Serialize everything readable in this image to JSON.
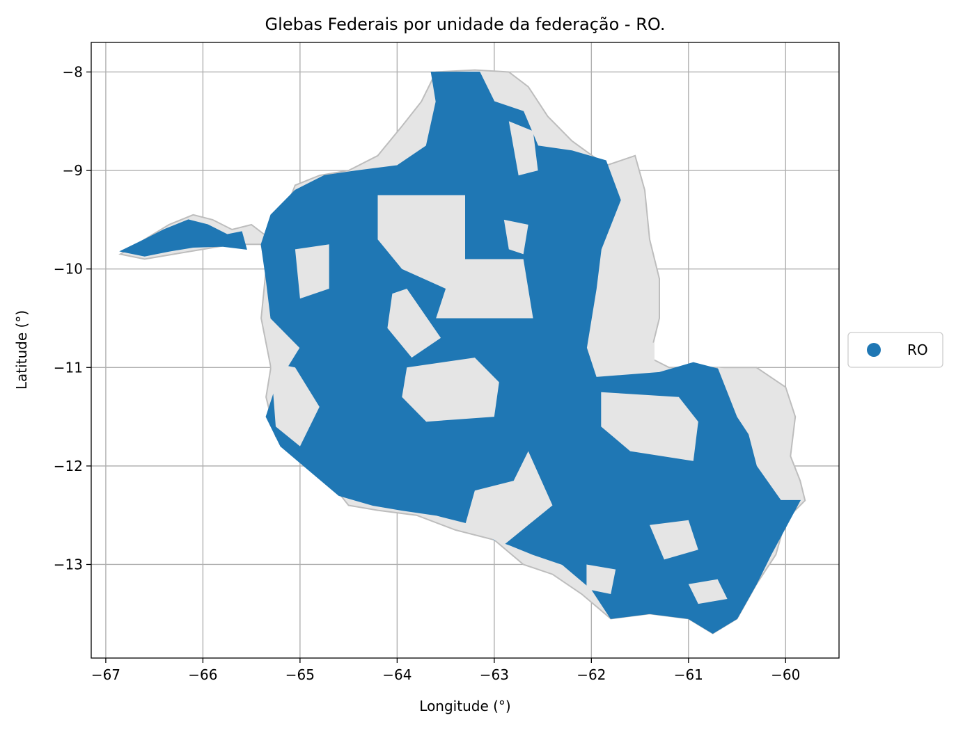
{
  "chart_data": {
    "type": "map",
    "title": "Glebas Federais por unidade da federação - RO.",
    "xlabel": "Longitude (°)",
    "ylabel": "Latitude (°)",
    "xlim": [
      -67.15,
      -59.45
    ],
    "ylim": [
      -13.95,
      -7.7
    ],
    "x_ticks": [
      -67,
      -66,
      -65,
      -64,
      -63,
      -62,
      -61,
      -60
    ],
    "x_tick_labels": [
      "−67",
      "−66",
      "−65",
      "−64",
      "−63",
      "−62",
      "−61",
      "−60"
    ],
    "y_ticks": [
      -8,
      -9,
      -10,
      -11,
      -12,
      -13
    ],
    "y_tick_labels": [
      "−8",
      "−9",
      "−10",
      "−11",
      "−12",
      "−13"
    ],
    "grid": true,
    "legend": {
      "placement": "center-right",
      "entries": [
        {
          "label": "RO",
          "color": "#1f77b4"
        }
      ]
    },
    "colors": {
      "glebas": "#1f77b4",
      "state_background": "#e5e5e5",
      "state_outline": "#bdbdbd",
      "grid": "#b0b0b0"
    },
    "state_outline": [
      [
        -66.85,
        -9.85
      ],
      [
        -66.6,
        -9.7
      ],
      [
        -66.35,
        -9.55
      ],
      [
        -66.1,
        -9.45
      ],
      [
        -65.9,
        -9.5
      ],
      [
        -65.7,
        -9.6
      ],
      [
        -65.5,
        -9.55
      ],
      [
        -65.3,
        -9.7
      ],
      [
        -65.15,
        -9.4
      ],
      [
        -65.05,
        -9.15
      ],
      [
        -64.8,
        -9.05
      ],
      [
        -64.5,
        -9.0
      ],
      [
        -64.2,
        -8.85
      ],
      [
        -63.95,
        -8.55
      ],
      [
        -63.75,
        -8.3
      ],
      [
        -63.6,
        -8.0
      ],
      [
        -63.2,
        -7.98
      ],
      [
        -62.85,
        -8.0
      ],
      [
        -62.65,
        -8.15
      ],
      [
        -62.45,
        -8.45
      ],
      [
        -62.2,
        -8.7
      ],
      [
        -61.85,
        -8.95
      ],
      [
        -61.55,
        -8.85
      ],
      [
        -61.45,
        -9.2
      ],
      [
        -61.4,
        -9.7
      ],
      [
        -61.3,
        -10.1
      ],
      [
        -61.3,
        -10.5
      ],
      [
        -61.4,
        -10.9
      ],
      [
        -61.2,
        -11.0
      ],
      [
        -60.7,
        -11.0
      ],
      [
        -60.3,
        -11.0
      ],
      [
        -60.0,
        -11.2
      ],
      [
        -59.9,
        -11.5
      ],
      [
        -59.95,
        -11.9
      ],
      [
        -59.85,
        -12.15
      ],
      [
        -59.8,
        -12.35
      ],
      [
        -60.0,
        -12.55
      ],
      [
        -60.1,
        -12.9
      ],
      [
        -60.3,
        -13.2
      ],
      [
        -60.5,
        -13.55
      ],
      [
        -60.75,
        -13.7
      ],
      [
        -61.0,
        -13.55
      ],
      [
        -61.4,
        -13.5
      ],
      [
        -61.8,
        -13.55
      ],
      [
        -62.1,
        -13.3
      ],
      [
        -62.4,
        -13.1
      ],
      [
        -62.7,
        -13.0
      ],
      [
        -63.0,
        -12.75
      ],
      [
        -63.4,
        -12.65
      ],
      [
        -63.8,
        -12.5
      ],
      [
        -64.2,
        -12.45
      ],
      [
        -64.5,
        -12.4
      ],
      [
        -64.7,
        -12.15
      ],
      [
        -65.0,
        -11.95
      ],
      [
        -65.25,
        -11.7
      ],
      [
        -65.35,
        -11.3
      ],
      [
        -65.3,
        -11.0
      ],
      [
        -65.4,
        -10.5
      ],
      [
        -65.35,
        -10.0
      ],
      [
        -65.4,
        -9.75
      ],
      [
        -65.7,
        -9.75
      ],
      [
        -66.0,
        -9.8
      ],
      [
        -66.3,
        -9.85
      ],
      [
        -66.6,
        -9.9
      ]
    ],
    "glebas": [
      [
        [
          -66.85,
          -9.82
        ],
        [
          -66.6,
          -9.7
        ],
        [
          -66.4,
          -9.6
        ],
        [
          -66.15,
          -9.5
        ],
        [
          -65.95,
          -9.55
        ],
        [
          -65.75,
          -9.65
        ],
        [
          -65.6,
          -9.62
        ],
        [
          -65.55,
          -9.8
        ],
        [
          -65.8,
          -9.77
        ],
        [
          -66.1,
          -9.78
        ],
        [
          -66.35,
          -9.82
        ],
        [
          -66.6,
          -9.87
        ]
      ],
      [
        [
          -65.3,
          -9.45
        ],
        [
          -65.05,
          -9.2
        ],
        [
          -64.75,
          -9.05
        ],
        [
          -64.4,
          -9.0
        ],
        [
          -64.0,
          -8.95
        ],
        [
          -63.7,
          -8.75
        ],
        [
          -63.6,
          -8.3
        ],
        [
          -63.65,
          -8.0
        ],
        [
          -63.15,
          -8.0
        ],
        [
          -63.0,
          -8.3
        ],
        [
          -62.7,
          -8.4
        ],
        [
          -62.55,
          -8.75
        ],
        [
          -62.2,
          -8.8
        ],
        [
          -61.85,
          -8.9
        ],
        [
          -61.7,
          -9.3
        ],
        [
          -61.9,
          -9.8
        ],
        [
          -61.95,
          -10.2
        ],
        [
          -62.05,
          -10.8
        ],
        [
          -61.95,
          -11.1
        ],
        [
          -61.3,
          -11.05
        ],
        [
          -60.95,
          -10.95
        ],
        [
          -60.55,
          -11.05
        ],
        [
          -60.3,
          -12.0
        ],
        [
          -60.05,
          -12.35
        ],
        [
          -59.85,
          -12.35
        ],
        [
          -60.15,
          -12.9
        ],
        [
          -60.3,
          -13.2
        ],
        [
          -60.5,
          -13.55
        ],
        [
          -60.75,
          -13.7
        ],
        [
          -61.0,
          -13.55
        ],
        [
          -61.4,
          -13.5
        ],
        [
          -61.8,
          -13.55
        ],
        [
          -62.0,
          -13.25
        ],
        [
          -62.3,
          -13.0
        ],
        [
          -62.6,
          -12.9
        ],
        [
          -62.85,
          -12.8
        ],
        [
          -63.0,
          -12.75
        ],
        [
          -63.2,
          -12.6
        ],
        [
          -63.6,
          -12.5
        ],
        [
          -63.95,
          -12.45
        ],
        [
          -64.25,
          -12.4
        ],
        [
          -64.6,
          -12.3
        ],
        [
          -64.9,
          -12.05
        ],
        [
          -65.2,
          -11.8
        ],
        [
          -65.35,
          -11.5
        ],
        [
          -65.25,
          -11.2
        ],
        [
          -65.0,
          -10.8
        ],
        [
          -65.3,
          -10.5
        ],
        [
          -65.35,
          -10.1
        ],
        [
          -65.4,
          -9.75
        ]
      ]
    ],
    "glebas_gaps": [
      [
        [
          -64.2,
          -9.25
        ],
        [
          -63.3,
          -9.25
        ],
        [
          -63.3,
          -9.9
        ],
        [
          -62.7,
          -9.9
        ],
        [
          -62.6,
          -10.5
        ],
        [
          -63.2,
          -10.5
        ],
        [
          -63.6,
          -10.5
        ],
        [
          -63.5,
          -10.2
        ],
        [
          -63.95,
          -10.0
        ],
        [
          -64.2,
          -9.7
        ]
      ],
      [
        [
          -64.05,
          -10.25
        ],
        [
          -63.9,
          -10.2
        ],
        [
          -63.55,
          -10.7
        ],
        [
          -63.85,
          -10.9
        ],
        [
          -64.1,
          -10.6
        ]
      ],
      [
        [
          -63.9,
          -11.0
        ],
        [
          -63.2,
          -10.9
        ],
        [
          -62.95,
          -11.15
        ],
        [
          -63.0,
          -11.5
        ],
        [
          -63.7,
          -11.55
        ],
        [
          -63.95,
          -11.3
        ]
      ],
      [
        [
          -65.3,
          -10.95
        ],
        [
          -65.05,
          -11.0
        ],
        [
          -64.8,
          -11.4
        ],
        [
          -65.0,
          -11.8
        ],
        [
          -65.25,
          -11.6
        ]
      ],
      [
        [
          -62.65,
          -11.85
        ],
        [
          -62.8,
          -12.15
        ],
        [
          -63.2,
          -12.25
        ],
        [
          -63.3,
          -12.6
        ],
        [
          -62.9,
          -12.8
        ],
        [
          -62.4,
          -12.4
        ]
      ],
      [
        [
          -61.9,
          -10.8
        ],
        [
          -61.65,
          -10.7
        ],
        [
          -61.35,
          -10.75
        ],
        [
          -61.35,
          -10.98
        ],
        [
          -61.7,
          -11.0
        ]
      ],
      [
        [
          -61.9,
          -11.25
        ],
        [
          -61.1,
          -11.3
        ],
        [
          -60.9,
          -11.55
        ],
        [
          -60.95,
          -11.95
        ],
        [
          -61.6,
          -11.85
        ],
        [
          -61.9,
          -11.6
        ]
      ],
      [
        [
          -60.7,
          -11.0
        ],
        [
          -60.3,
          -11.05
        ],
        [
          -60.0,
          -11.25
        ],
        [
          -59.95,
          -11.7
        ],
        [
          -60.2,
          -11.95
        ],
        [
          -60.5,
          -11.5
        ]
      ],
      [
        [
          -61.5,
          -9.3
        ],
        [
          -61.45,
          -9.6
        ],
        [
          -61.4,
          -10.0
        ],
        [
          -61.35,
          -10.5
        ],
        [
          -61.55,
          -10.5
        ],
        [
          -61.6,
          -10.0
        ]
      ],
      [
        [
          -62.85,
          -8.5
        ],
        [
          -62.6,
          -8.6
        ],
        [
          -62.55,
          -9.0
        ],
        [
          -62.75,
          -9.05
        ]
      ],
      [
        [
          -61.4,
          -12.6
        ],
        [
          -61.0,
          -12.55
        ],
        [
          -60.9,
          -12.85
        ],
        [
          -61.25,
          -12.95
        ]
      ],
      [
        [
          -62.05,
          -13.0
        ],
        [
          -61.75,
          -13.05
        ],
        [
          -61.8,
          -13.3
        ],
        [
          -62.05,
          -13.25
        ]
      ],
      [
        [
          -65.05,
          -9.8
        ],
        [
          -64.7,
          -9.75
        ],
        [
          -64.7,
          -10.2
        ],
        [
          -65.0,
          -10.3
        ]
      ],
      [
        [
          -62.9,
          -9.5
        ],
        [
          -62.65,
          -9.55
        ],
        [
          -62.7,
          -9.85
        ],
        [
          -62.85,
          -9.8
        ]
      ],
      [
        [
          -61.0,
          -13.2
        ],
        [
          -60.7,
          -13.15
        ],
        [
          -60.6,
          -13.35
        ],
        [
          -60.9,
          -13.4
        ]
      ]
    ]
  }
}
